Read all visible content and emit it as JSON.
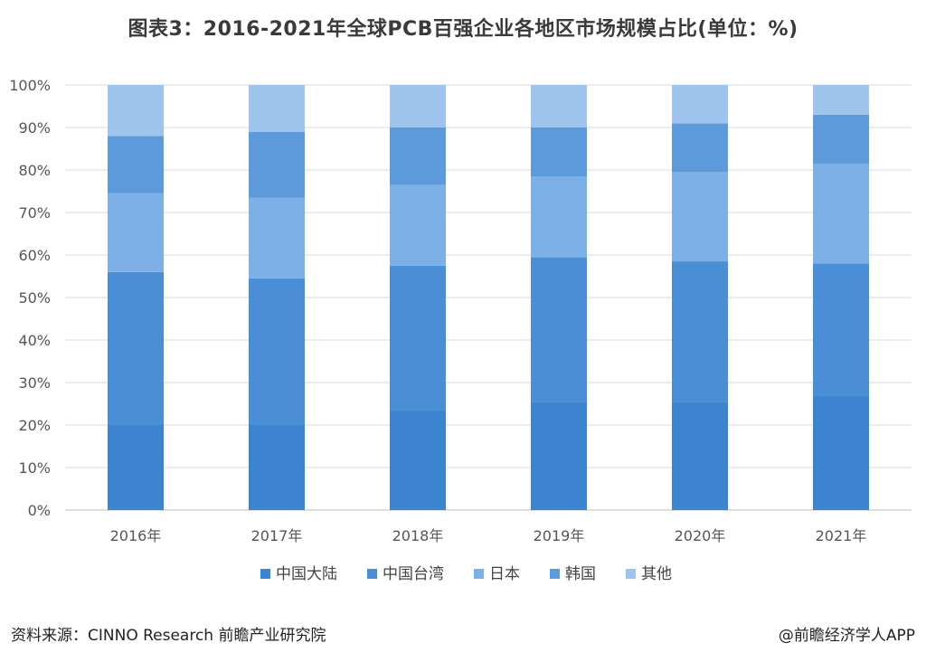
{
  "title": "图表3：2016-2021年全球PCB百强企业各地区市场规模占比(单位：%)",
  "source": "资料来源：CINNO Research 前瞻产业研究院",
  "credit": "@前瞻经济学人APP",
  "chart_data": {
    "type": "bar",
    "stacked": true,
    "categories": [
      "2016年",
      "2017年",
      "2018年",
      "2019年",
      "2020年",
      "2021年"
    ],
    "series": [
      {
        "name": "中国大陆",
        "values": [
          20,
          20,
          23.5,
          25.5,
          25.5,
          27
        ],
        "color": "#3d85d1"
      },
      {
        "name": "中国台湾",
        "values": [
          36,
          34.5,
          34,
          34,
          33,
          31
        ],
        "color": "#4a8fd6"
      },
      {
        "name": "日本",
        "values": [
          18.5,
          19,
          19,
          19,
          21,
          23.5
        ],
        "color": "#7cb0e6"
      },
      {
        "name": "韩国",
        "values": [
          13.5,
          15.5,
          13.5,
          11.5,
          11.5,
          11.5
        ],
        "color": "#5d9adb"
      },
      {
        "name": "其他",
        "values": [
          12,
          11,
          10,
          10,
          9,
          7
        ],
        "color": "#9fc5ee"
      }
    ],
    "ylim": [
      0,
      100
    ],
    "y_ticks": [
      "0%",
      "10%",
      "20%",
      "30%",
      "40%",
      "50%",
      "60%",
      "70%",
      "80%",
      "90%",
      "100%"
    ],
    "grid": true,
    "legend_position": "bottom"
  }
}
